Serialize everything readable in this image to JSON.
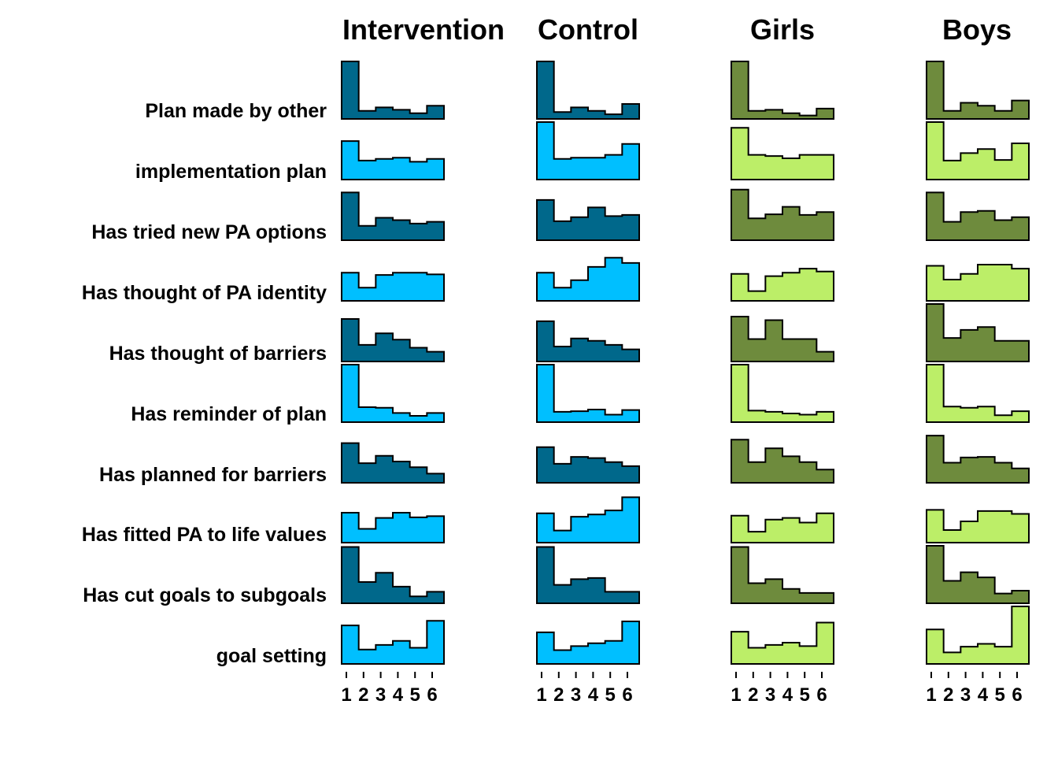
{
  "chart_data": {
    "type": "bar",
    "chart_style": "small-multiples step histograms",
    "columns": [
      "Intervention",
      "Control",
      "Girls",
      "Boys"
    ],
    "rows": [
      "Plan made by other",
      "implementation plan",
      "Has tried new PA options",
      "Has thought of PA identity",
      "Has thought of barriers",
      "Has reminder of plan",
      "Has planned for barriers",
      "Has fitted PA to life values",
      "Has cut goals to subgoals",
      "goal setting"
    ],
    "categories": [
      "1",
      "2",
      "3",
      "4",
      "5",
      "6"
    ],
    "row_scale_max": [
      1.0,
      1.0,
      1.0,
      1.0,
      1.0,
      1.0,
      1.0,
      1.0,
      1.0,
      1.0
    ],
    "series": [
      {
        "column": "Intervention",
        "color": "#00688B",
        "values": [
          [
            1.0,
            0.14,
            0.2,
            0.16,
            0.1,
            0.23
          ],
          [
            0.67,
            0.33,
            0.36,
            0.38,
            0.31,
            0.36
          ],
          [
            0.83,
            0.25,
            0.39,
            0.35,
            0.29,
            0.32
          ],
          [
            0.49,
            0.23,
            0.45,
            0.49,
            0.49,
            0.46
          ],
          [
            0.74,
            0.29,
            0.49,
            0.38,
            0.24,
            0.17
          ],
          [
            1.0,
            0.26,
            0.25,
            0.16,
            0.11,
            0.16
          ],
          [
            0.69,
            0.34,
            0.47,
            0.37,
            0.27,
            0.16
          ],
          [
            0.52,
            0.24,
            0.43,
            0.52,
            0.44,
            0.46
          ],
          [
            0.98,
            0.37,
            0.53,
            0.29,
            0.12,
            0.2
          ],
          [
            0.67,
            0.25,
            0.33,
            0.4,
            0.28,
            0.75
          ]
        ]
      },
      {
        "column": "Control",
        "color": "#00BFFF",
        "values": [
          [
            1.0,
            0.12,
            0.2,
            0.14,
            0.08,
            0.26
          ],
          [
            1.0,
            0.36,
            0.38,
            0.38,
            0.43,
            0.62
          ],
          [
            0.7,
            0.33,
            0.4,
            0.57,
            0.42,
            0.44
          ],
          [
            0.49,
            0.23,
            0.36,
            0.59,
            0.75,
            0.66
          ],
          [
            0.7,
            0.26,
            0.4,
            0.36,
            0.29,
            0.21
          ],
          [
            1.0,
            0.18,
            0.19,
            0.22,
            0.13,
            0.21
          ],
          [
            0.62,
            0.33,
            0.45,
            0.43,
            0.36,
            0.29
          ],
          [
            0.51,
            0.21,
            0.45,
            0.49,
            0.56,
            0.79
          ],
          [
            0.98,
            0.32,
            0.42,
            0.44,
            0.2,
            0.2
          ],
          [
            0.55,
            0.24,
            0.31,
            0.36,
            0.4,
            0.74
          ]
        ]
      },
      {
        "column": "Girls",
        "color": "#6E8B3D",
        "values": [
          [
            1.0,
            0.14,
            0.16,
            0.1,
            0.06,
            0.18
          ],
          [
            0.9,
            0.43,
            0.41,
            0.37,
            0.43,
            0.43
          ],
          [
            0.88,
            0.38,
            0.45,
            0.58,
            0.44,
            0.49
          ],
          [
            0.47,
            0.17,
            0.43,
            0.49,
            0.56,
            0.51
          ],
          [
            0.78,
            0.39,
            0.72,
            0.39,
            0.39,
            0.17
          ],
          [
            1.0,
            0.2,
            0.18,
            0.15,
            0.13,
            0.18
          ],
          [
            0.75,
            0.36,
            0.6,
            0.46,
            0.36,
            0.23
          ],
          [
            0.47,
            0.19,
            0.4,
            0.43,
            0.35,
            0.51
          ],
          [
            0.98,
            0.35,
            0.42,
            0.25,
            0.18,
            0.18
          ],
          [
            0.56,
            0.28,
            0.33,
            0.37,
            0.31,
            0.72
          ]
        ]
      },
      {
        "column": "Boys",
        "color": "#BCEE68",
        "values": [
          [
            1.0,
            0.14,
            0.28,
            0.23,
            0.14,
            0.32
          ],
          [
            1.0,
            0.33,
            0.46,
            0.53,
            0.34,
            0.63
          ],
          [
            0.83,
            0.32,
            0.49,
            0.51,
            0.35,
            0.4
          ],
          [
            0.61,
            0.37,
            0.47,
            0.63,
            0.63,
            0.56
          ],
          [
            1.0,
            0.41,
            0.55,
            0.6,
            0.36,
            0.36
          ],
          [
            1.0,
            0.27,
            0.25,
            0.27,
            0.12,
            0.19
          ],
          [
            0.82,
            0.35,
            0.44,
            0.45,
            0.35,
            0.25
          ],
          [
            0.57,
            0.22,
            0.37,
            0.55,
            0.55,
            0.5
          ],
          [
            1.0,
            0.39,
            0.54,
            0.45,
            0.17,
            0.22
          ],
          [
            0.6,
            0.2,
            0.3,
            0.35,
            0.3,
            1.0
          ]
        ]
      }
    ],
    "row_colors": [
      "dark",
      "light",
      "dark",
      "light",
      "dark",
      "light",
      "dark",
      "light",
      "dark",
      "light"
    ],
    "colors": {
      "Intervention_dark": "#00688B",
      "Intervention_light": "#00BFFF",
      "Control_dark": "#00688B",
      "Control_light": "#00BFFF",
      "Girls_dark": "#6E8B3D",
      "Girls_light": "#BCEE68",
      "Boys_dark": "#6E8B3D",
      "Boys_light": "#BCEE68"
    },
    "grid": false,
    "legend": "none"
  }
}
